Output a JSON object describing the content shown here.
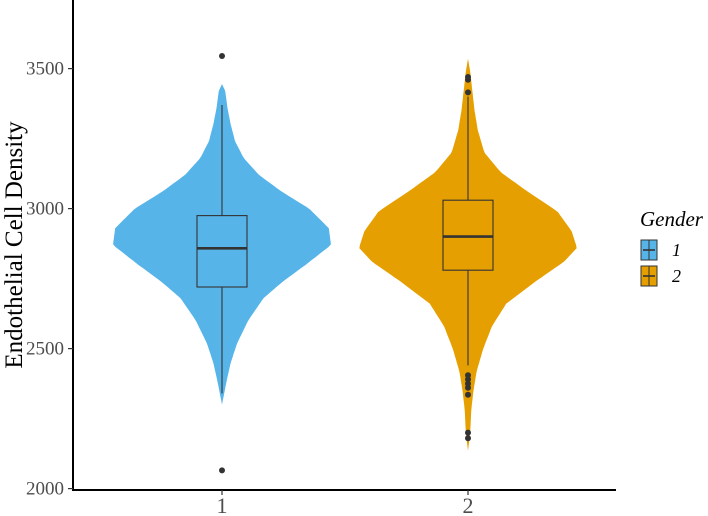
{
  "chart_data": {
    "type": "violin",
    "title": "",
    "xlabel": "",
    "ylabel": "Endothelial Cell Density",
    "ylim": [
      1995,
      3745
    ],
    "yticks": [
      2000,
      2500,
      3000,
      3500
    ],
    "grid": false,
    "legend": {
      "title": "Gender",
      "position": "right"
    },
    "categories": [
      "1",
      "2"
    ],
    "series": [
      {
        "name": "1",
        "color": "#56B4E9",
        "violin_range": [
          2300,
          3445
        ],
        "density_profile": [
          [
            2300,
            0.0
          ],
          [
            2380,
            0.04
          ],
          [
            2450,
            0.08
          ],
          [
            2520,
            0.14
          ],
          [
            2600,
            0.24
          ],
          [
            2680,
            0.38
          ],
          [
            2740,
            0.56
          ],
          [
            2800,
            0.77
          ],
          [
            2870,
            1.0
          ],
          [
            2930,
            0.98
          ],
          [
            3000,
            0.8
          ],
          [
            3060,
            0.55
          ],
          [
            3120,
            0.34
          ],
          [
            3180,
            0.2
          ],
          [
            3240,
            0.12
          ],
          [
            3300,
            0.08
          ],
          [
            3360,
            0.05
          ],
          [
            3420,
            0.03
          ],
          [
            3445,
            0.0
          ]
        ],
        "box": {
          "min": 2340,
          "q1": 2720,
          "median": 2858,
          "q3": 2975,
          "max": 3370
        },
        "outliers": [
          2065,
          3545
        ]
      },
      {
        "name": "2",
        "color": "#E69F00",
        "violin_range": [
          2135,
          3535
        ],
        "density_profile": [
          [
            2135,
            0.0
          ],
          [
            2200,
            0.02
          ],
          [
            2280,
            0.03
          ],
          [
            2350,
            0.05
          ],
          [
            2420,
            0.08
          ],
          [
            2500,
            0.14
          ],
          [
            2580,
            0.22
          ],
          [
            2660,
            0.35
          ],
          [
            2740,
            0.62
          ],
          [
            2810,
            0.88
          ],
          [
            2860,
            1.0
          ],
          [
            2920,
            0.95
          ],
          [
            2990,
            0.82
          ],
          [
            3060,
            0.55
          ],
          [
            3130,
            0.3
          ],
          [
            3200,
            0.15
          ],
          [
            3280,
            0.09
          ],
          [
            3350,
            0.06
          ],
          [
            3420,
            0.04
          ],
          [
            3490,
            0.02
          ],
          [
            3535,
            0.0
          ]
        ],
        "box": {
          "min": 2440,
          "q1": 2780,
          "median": 2900,
          "q3": 3030,
          "max": 3400
        },
        "outliers": [
          2180,
          2200,
          2335,
          2360,
          2375,
          2390,
          2405,
          3415,
          3460,
          3470
        ]
      }
    ]
  }
}
